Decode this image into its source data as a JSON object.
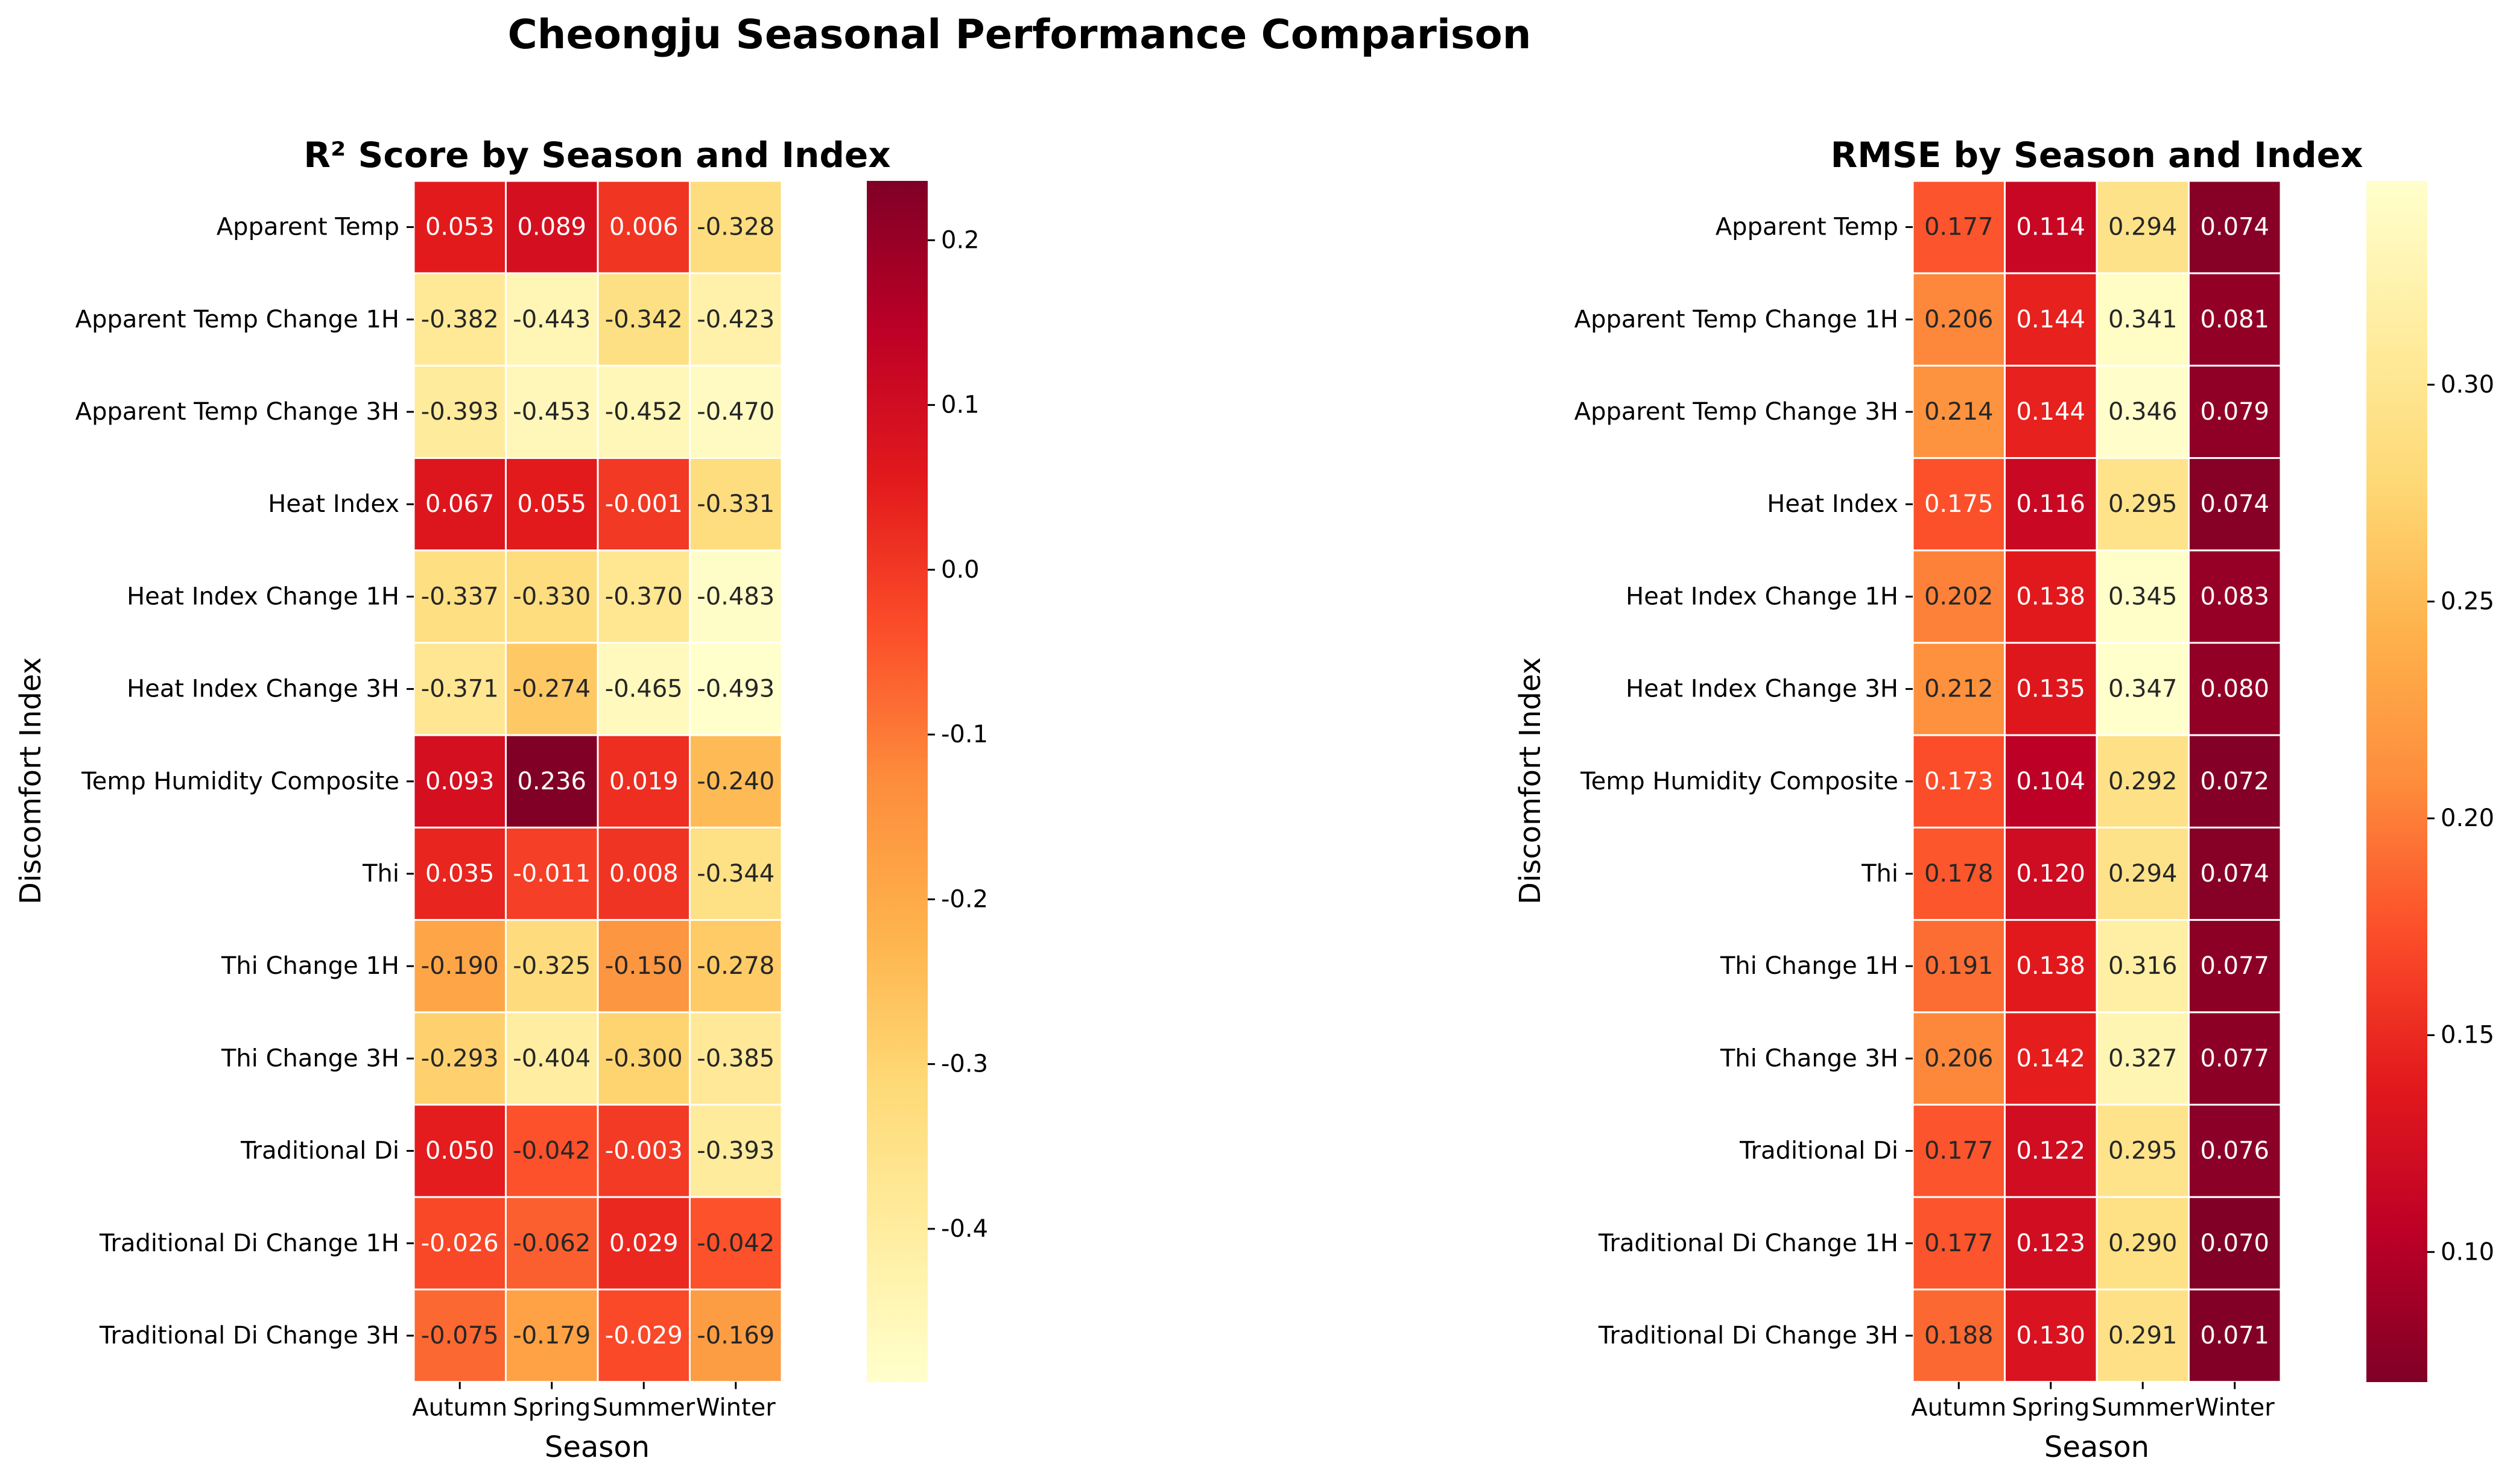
{
  "figure_title": "Cheongju Seasonal Performance Comparison",
  "chart_data": [
    {
      "type": "heatmap",
      "title": "R² Score by Season and Index",
      "xlabel": "Season",
      "ylabel": "Discomfort Index",
      "x": [
        "Autumn",
        "Spring",
        "Summer",
        "Winter"
      ],
      "y": [
        "Apparent Temp",
        "Apparent Temp Change 1H",
        "Apparent Temp Change 3H",
        "Heat Index",
        "Heat Index Change 1H",
        "Heat Index Change 3H",
        "Temp Humidity Composite",
        "Thi",
        "Thi Change 1H",
        "Thi Change 3H",
        "Traditional Di",
        "Traditional Di Change 1H",
        "Traditional Di Change 3H"
      ],
      "values": [
        [
          0.053,
          0.089,
          0.006,
          -0.328
        ],
        [
          -0.382,
          -0.443,
          -0.342,
          -0.423
        ],
        [
          -0.393,
          -0.453,
          -0.452,
          -0.47
        ],
        [
          0.067,
          0.055,
          -0.001,
          -0.331
        ],
        [
          -0.337,
          -0.33,
          -0.37,
          -0.483
        ],
        [
          -0.371,
          -0.274,
          -0.465,
          -0.493
        ],
        [
          0.093,
          0.236,
          0.019,
          -0.24
        ],
        [
          0.035,
          -0.011,
          0.008,
          -0.344
        ],
        [
          -0.19,
          -0.325,
          -0.15,
          -0.278
        ],
        [
          -0.293,
          -0.404,
          -0.3,
          -0.385
        ],
        [
          0.05,
          -0.042,
          -0.003,
          -0.393
        ],
        [
          -0.026,
          -0.062,
          0.029,
          -0.042
        ],
        [
          -0.075,
          -0.179,
          -0.029,
          -0.169
        ]
      ],
      "colormap": "YlOrRd",
      "colorbar_range": [
        -0.493,
        0.236
      ],
      "colorbar_ticks": [
        0.2,
        0.1,
        0.0,
        -0.1,
        -0.2,
        -0.3,
        -0.4
      ],
      "colorbar_tick_labels": [
        "0.2",
        "0.1",
        "0.0",
        "-0.1",
        "-0.2",
        "-0.3",
        "-0.4"
      ],
      "grid": false
    },
    {
      "type": "heatmap",
      "title": "RMSE by Season and Index",
      "xlabel": "Season",
      "ylabel": "Discomfort Index",
      "x": [
        "Autumn",
        "Spring",
        "Summer",
        "Winter"
      ],
      "y": [
        "Apparent Temp",
        "Apparent Temp Change 1H",
        "Apparent Temp Change 3H",
        "Heat Index",
        "Heat Index Change 1H",
        "Heat Index Change 3H",
        "Temp Humidity Composite",
        "Thi",
        "Thi Change 1H",
        "Thi Change 3H",
        "Traditional Di",
        "Traditional Di Change 1H",
        "Traditional Di Change 3H"
      ],
      "values": [
        [
          0.177,
          0.114,
          0.294,
          0.074
        ],
        [
          0.206,
          0.144,
          0.341,
          0.081
        ],
        [
          0.214,
          0.144,
          0.346,
          0.079
        ],
        [
          0.175,
          0.116,
          0.295,
          0.074
        ],
        [
          0.202,
          0.138,
          0.345,
          0.083
        ],
        [
          0.212,
          0.135,
          0.347,
          0.08
        ],
        [
          0.173,
          0.104,
          0.292,
          0.072
        ],
        [
          0.178,
          0.12,
          0.294,
          0.074
        ],
        [
          0.191,
          0.138,
          0.316,
          0.077
        ],
        [
          0.206,
          0.142,
          0.327,
          0.077
        ],
        [
          0.177,
          0.122,
          0.295,
          0.076
        ],
        [
          0.177,
          0.123,
          0.29,
          0.07
        ],
        [
          0.188,
          0.13,
          0.291,
          0.071
        ]
      ],
      "colormap": "YlOrRd_r",
      "colorbar_range": [
        0.07,
        0.347
      ],
      "colorbar_ticks": [
        0.3,
        0.25,
        0.2,
        0.15,
        0.1
      ],
      "colorbar_tick_labels": [
        "0.30",
        "0.25",
        "0.20",
        "0.15",
        "0.10"
      ],
      "grid": false
    }
  ]
}
